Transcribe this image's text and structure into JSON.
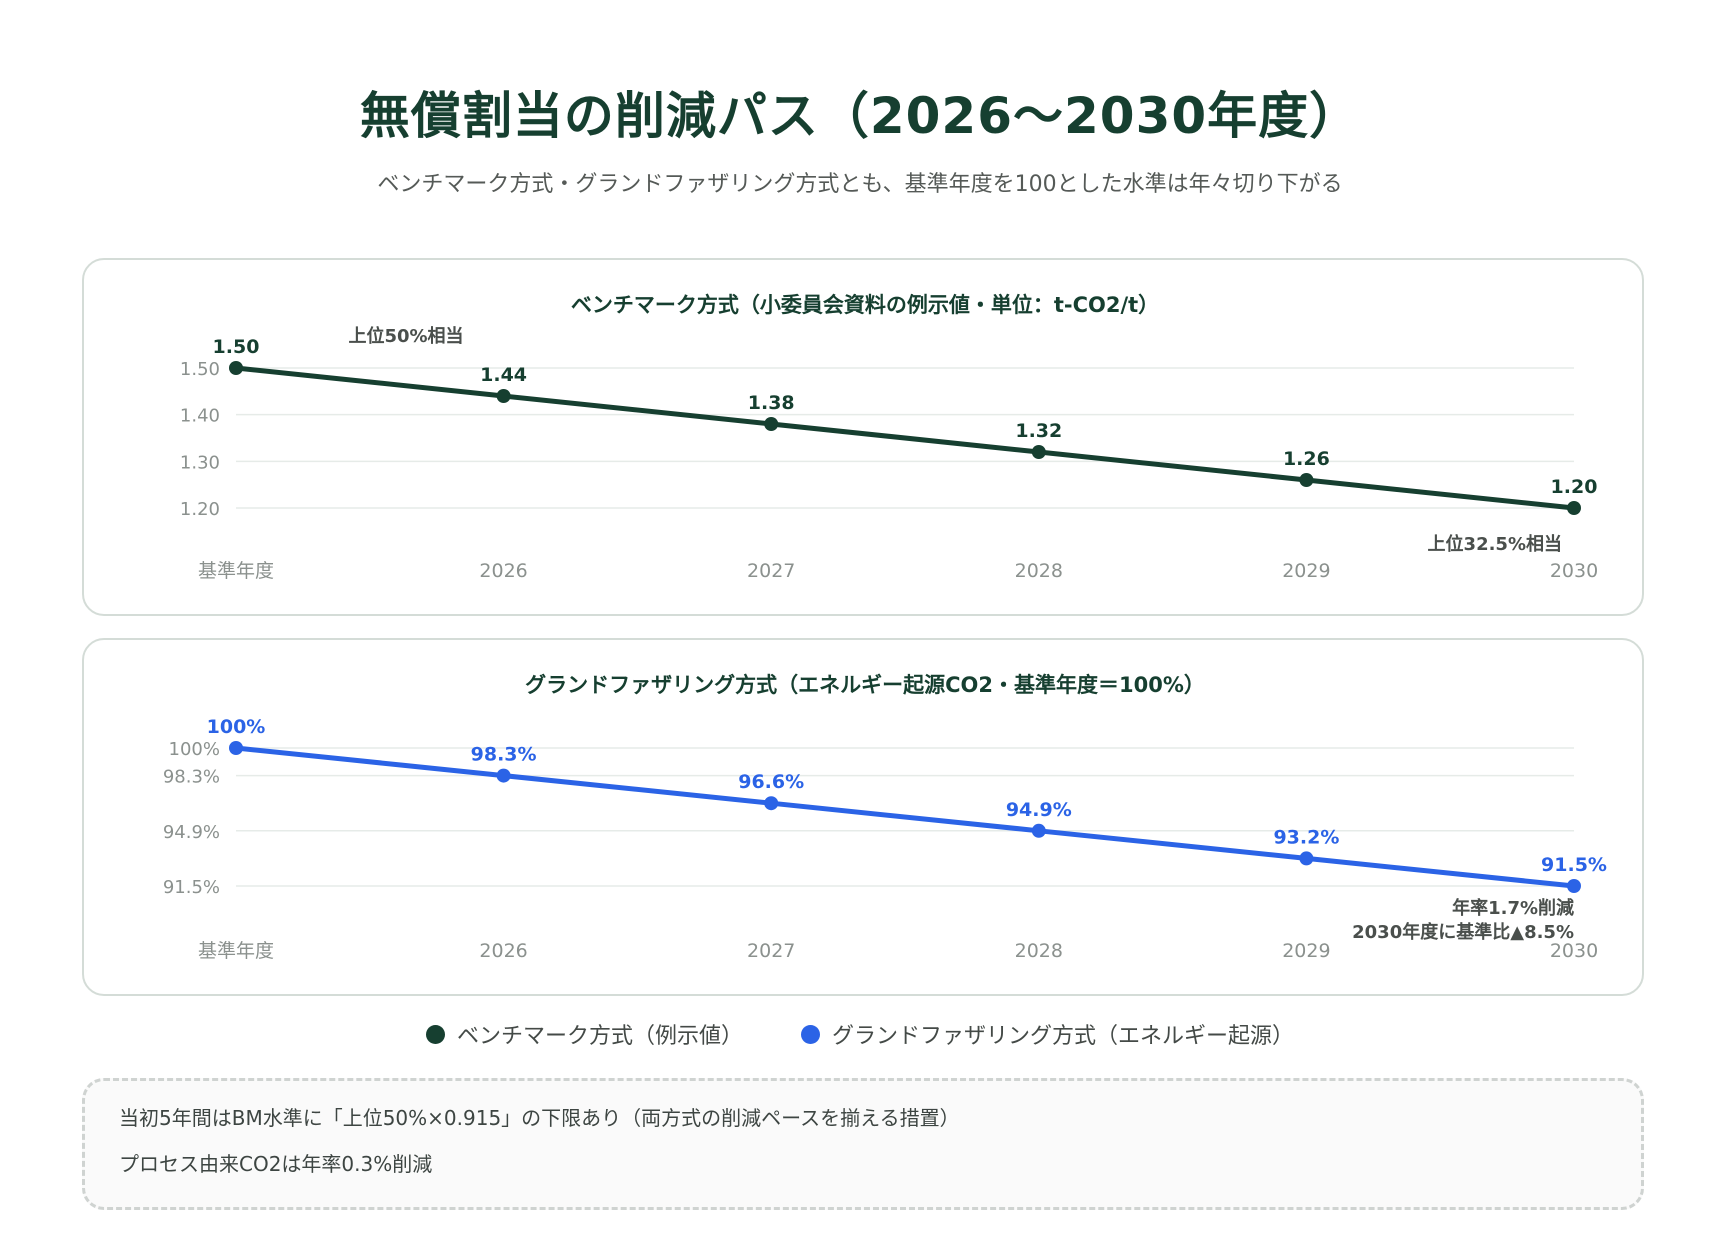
{
  "header": {
    "title": "無償割当の削減パス（2026〜2030年度）",
    "subtitle": "ベンチマーク方式・グランドファザリング方式とも、基準年度を100とした水準は年々切り下がる"
  },
  "colors": {
    "benchmark": "#163f30",
    "grandfathering": "#2b63e6"
  },
  "chart_data": [
    {
      "type": "line",
      "title": "ベンチマーク方式（小委員会資料の例示値・単位：t-CO2/t）",
      "categories": [
        "基準年度",
        "2026",
        "2027",
        "2028",
        "2029",
        "2030"
      ],
      "series": [
        {
          "name": "ベンチマーク方式（例示値）",
          "values": [
            1.5,
            1.44,
            1.38,
            1.32,
            1.26,
            1.2
          ]
        }
      ],
      "data_labels": [
        "1.50",
        "1.44",
        "1.38",
        "1.32",
        "1.26",
        "1.20"
      ],
      "y_ticks": [
        1.5,
        1.4,
        1.3,
        1.2
      ],
      "y_tick_labels": [
        "1.50",
        "1.40",
        "1.30",
        "1.20"
      ],
      "ylim": [
        1.2,
        1.5
      ],
      "grid": true,
      "annotations": [
        {
          "text": "上位50%相当",
          "at": "基準年度"
        },
        {
          "text": "上位32.5%相当",
          "at": "2030"
        }
      ]
    },
    {
      "type": "line",
      "title": "グランドファザリング方式（エネルギー起源CO2・基準年度＝100%）",
      "categories": [
        "基準年度",
        "2026",
        "2027",
        "2028",
        "2029",
        "2030"
      ],
      "series": [
        {
          "name": "グランドファザリング方式（エネルギー起源）",
          "values": [
            100,
            98.3,
            96.6,
            94.9,
            93.2,
            91.5
          ]
        }
      ],
      "data_labels": [
        "100%",
        "98.3%",
        "96.6%",
        "94.9%",
        "93.2%",
        "91.5%"
      ],
      "y_ticks": [
        100,
        98.3,
        94.9,
        91.5
      ],
      "y_tick_labels": [
        "100%",
        "98.3%",
        "94.9%",
        "91.5%"
      ],
      "ylim": [
        91.5,
        100
      ],
      "grid": true,
      "annotations": [
        {
          "text": "年率1.7%削減",
          "at": "2030"
        },
        {
          "text": "2030年度に基準比▲8.5%",
          "at": "2030"
        }
      ]
    }
  ],
  "legend": [
    {
      "label": "ベンチマーク方式（例示値）",
      "color": "#163f30"
    },
    {
      "label": "グランドファザリング方式（エネルギー起源）",
      "color": "#2b63e6"
    }
  ],
  "notes": [
    "当初5年間はBM水準に「上位50%×0.915」の下限あり（両方式の削減ペースを揃える措置）",
    "プロセス由来CO2は年率0.3%削減"
  ]
}
